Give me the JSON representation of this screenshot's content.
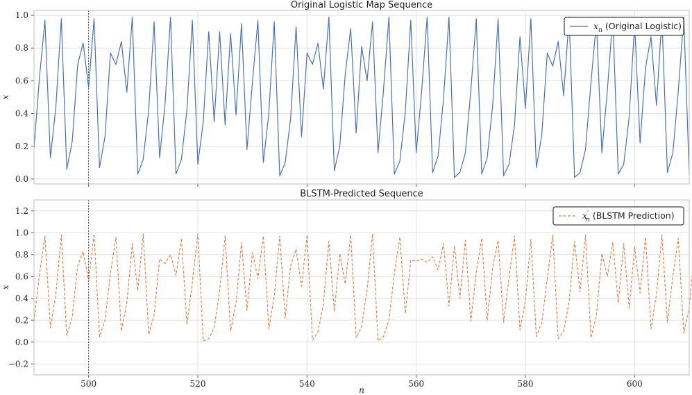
{
  "colors": {
    "original": "#4c72b0",
    "prediction": "#dd8452",
    "grid": "#e0e0e0",
    "vline": "#444444"
  },
  "chart_data": [
    {
      "type": "line",
      "title": "Original Logistic Map Sequence",
      "xlabel": "",
      "ylabel": "x",
      "xlim": [
        490,
        610
      ],
      "ylim": [
        -0.03,
        1.03
      ],
      "xticks": [
        500,
        520,
        540,
        560,
        580,
        600
      ],
      "xtick_labels": [
        "",
        "",
        "",
        "",
        "",
        ""
      ],
      "yticks": [
        0.0,
        0.2,
        0.4,
        0.6,
        0.8,
        1.0
      ],
      "ytick_labels": [
        "0.0",
        "0.2",
        "0.4",
        "0.6",
        "0.8",
        "1.0"
      ],
      "grid": true,
      "legend_position": "top-right",
      "vline": 500,
      "series": [
        {
          "name": "x_n (Original Logistic)",
          "legend_math": "x",
          "legend_sub": "n",
          "legend_text": " (Original Logistic)",
          "style": "solid",
          "x_start": 490,
          "values": [
            0.19,
            0.62,
            0.97,
            0.13,
            0.44,
            0.98,
            0.06,
            0.23,
            0.7,
            0.83,
            0.56,
            0.98,
            0.07,
            0.26,
            0.77,
            0.7,
            0.84,
            0.53,
            0.99,
            0.03,
            0.12,
            0.42,
            0.96,
            0.13,
            0.46,
            0.99,
            0.03,
            0.12,
            0.42,
            0.97,
            0.09,
            0.35,
            0.9,
            0.35,
            0.9,
            0.33,
            0.89,
            0.39,
            0.95,
            0.18,
            0.59,
            0.97,
            0.1,
            0.4,
            0.96,
            0.02,
            0.1,
            0.37,
            0.93,
            0.26,
            0.77,
            0.7,
            0.83,
            0.55,
            0.99,
            0.05,
            0.2,
            0.64,
            0.92,
            0.28,
            0.81,
            0.6,
            0.96,
            0.16,
            0.54,
            0.99,
            0.03,
            0.11,
            0.41,
            0.97,
            0.16,
            0.54,
            0.99,
            0.04,
            0.14,
            0.49,
            0.99,
            0.01,
            0.04,
            0.16,
            0.54,
            0.98,
            0.03,
            0.13,
            0.45,
            0.98,
            0.02,
            0.09,
            0.33,
            0.87,
            0.43,
            0.98,
            0.07,
            0.27,
            0.77,
            0.69,
            0.84,
            0.51,
            0.99,
            0.01,
            0.04,
            0.18,
            0.59,
            0.96,
            0.16,
            0.54,
            0.99,
            0.03,
            0.09,
            0.38,
            0.95,
            0.22,
            0.68,
            0.87,
            0.45,
            0.99,
            0.04,
            0.16,
            0.54,
            0.99,
            0.03
          ]
        }
      ]
    },
    {
      "type": "line",
      "title": "BLSTM-Predicted Sequence",
      "xlabel": "n",
      "ylabel": "x",
      "xlim": [
        490,
        610
      ],
      "ylim": [
        -0.3,
        1.3
      ],
      "xticks": [
        500,
        520,
        540,
        560,
        580,
        600
      ],
      "xtick_labels": [
        "500",
        "520",
        "540",
        "560",
        "580",
        "600"
      ],
      "yticks": [
        -0.2,
        0.0,
        0.2,
        0.4,
        0.6,
        0.8,
        1.0,
        1.2
      ],
      "ytick_labels": [
        "−0.2",
        "0.0",
        "0.2",
        "0.4",
        "0.6",
        "0.8",
        "1.0",
        "1.2"
      ],
      "grid": true,
      "legend_position": "top-right",
      "vline": 500,
      "series": [
        {
          "name": "x'_n (BLSTM Prediction)",
          "legend_math": "x",
          "legend_sub": "n",
          "legend_sup": "′",
          "legend_text": " (BLSTM Prediction)",
          "style": "dashed",
          "x_start": 490,
          "values": [
            0.19,
            0.62,
            0.97,
            0.13,
            0.44,
            0.98,
            0.06,
            0.23,
            0.7,
            0.83,
            0.56,
            0.99,
            0.05,
            0.2,
            0.63,
            0.96,
            0.1,
            0.36,
            0.9,
            0.47,
            0.99,
            0.07,
            0.25,
            0.76,
            0.72,
            0.8,
            0.61,
            0.95,
            0.16,
            0.55,
            0.99,
            0.01,
            0.03,
            0.13,
            0.47,
            0.97,
            0.1,
            0.36,
            0.91,
            0.29,
            0.82,
            0.58,
            0.97,
            0.12,
            0.42,
            0.97,
            0.22,
            0.7,
            0.85,
            0.51,
            0.98,
            0.02,
            0.09,
            0.35,
            0.92,
            0.28,
            0.81,
            0.53,
            0.98,
            0.04,
            0.14,
            0.48,
            0.99,
            0.01,
            0.05,
            0.2,
            0.63,
            0.96,
            0.26,
            0.75,
            0.74,
            0.76,
            0.73,
            0.78,
            0.66,
            0.9,
            0.33,
            0.88,
            0.4,
            0.93,
            0.19,
            0.64,
            0.95,
            0.2,
            0.68,
            0.93,
            0.18,
            0.59,
            0.97,
            0.11,
            0.38,
            0.94,
            0.05,
            0.18,
            0.58,
            0.98,
            0.03,
            0.1,
            0.37,
            0.92,
            0.46,
            0.98,
            0.04,
            0.24,
            0.81,
            0.6,
            0.91,
            0.36,
            0.9,
            0.31,
            0.87,
            0.45,
            0.96,
            0.12,
            0.44,
            0.98,
            0.18,
            0.6,
            0.95,
            0.08,
            0.32,
            0.85,
            0.58
          ]
        }
      ]
    }
  ]
}
